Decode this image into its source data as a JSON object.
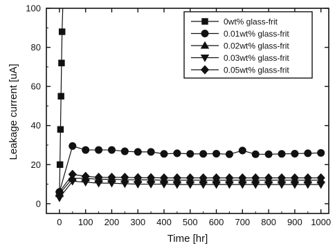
{
  "chart_data": {
    "type": "line",
    "xlabel": "Time [hr]",
    "ylabel": "Leakage current [uA]",
    "xlim": [
      -50,
      1030
    ],
    "ylim": [
      -5,
      100
    ],
    "xticks": [
      0,
      100,
      200,
      300,
      400,
      500,
      600,
      700,
      800,
      900,
      1000
    ],
    "yticks": [
      0,
      20,
      40,
      60,
      80,
      100
    ],
    "grid": false,
    "legend_position": "top-right",
    "series": [
      {
        "name": "0wt% glass-frit",
        "marker": "square",
        "x": [
          0,
          2,
          4,
          6,
          8,
          10,
          15
        ],
        "y": [
          5,
          20,
          38,
          55,
          72,
          88,
          110
        ]
      },
      {
        "name": "0.01wt% glass-frit",
        "marker": "circle",
        "x": [
          0,
          50,
          100,
          150,
          200,
          250,
          300,
          350,
          400,
          450,
          500,
          550,
          600,
          650,
          700,
          750,
          800,
          850,
          900,
          950,
          1000
        ],
        "y": [
          6,
          29.5,
          27.5,
          27.5,
          27.5,
          26.8,
          26.5,
          26.5,
          25.5,
          25.8,
          25.5,
          25.5,
          25.6,
          25.3,
          27.2,
          25.3,
          25.3,
          25.5,
          25.6,
          25.8,
          26
        ]
      },
      {
        "name": "0.02wt% glass-frit",
        "marker": "triangle-up",
        "x": [
          0,
          50,
          100,
          150,
          200,
          250,
          300,
          350,
          400,
          450,
          500,
          550,
          600,
          650,
          700,
          750,
          800,
          850,
          900,
          950,
          1000
        ],
        "y": [
          5,
          13,
          13,
          12.5,
          12.5,
          12.3,
          12.2,
          12.2,
          12,
          12,
          12,
          12,
          12,
          12,
          12,
          12,
          12,
          12,
          12,
          12,
          12
        ]
      },
      {
        "name": "0.03wt% glass-frit",
        "marker": "triangle-down",
        "x": [
          0,
          50,
          100,
          150,
          200,
          250,
          300,
          350,
          400,
          450,
          500,
          550,
          600,
          650,
          700,
          750,
          800,
          850,
          900,
          950,
          1000
        ],
        "y": [
          3,
          11.5,
          11,
          10.5,
          10.5,
          10.2,
          10,
          10,
          10,
          9.8,
          9.8,
          9.8,
          9.8,
          9.8,
          9.8,
          9.8,
          9.8,
          9.8,
          9.8,
          9.8,
          9.8
        ]
      },
      {
        "name": "0.05wt% glass-frit",
        "marker": "diamond",
        "x": [
          0,
          50,
          100,
          150,
          200,
          250,
          300,
          350,
          400,
          450,
          500,
          550,
          600,
          650,
          700,
          750,
          800,
          850,
          900,
          950,
          1000
        ],
        "y": [
          6,
          15,
          14,
          13.5,
          13.5,
          13.5,
          13.3,
          13.3,
          13.2,
          13.2,
          13.2,
          13.2,
          13.2,
          13.2,
          13.2,
          13.2,
          13.2,
          13.2,
          13.2,
          13.2,
          13.2
        ]
      }
    ]
  }
}
